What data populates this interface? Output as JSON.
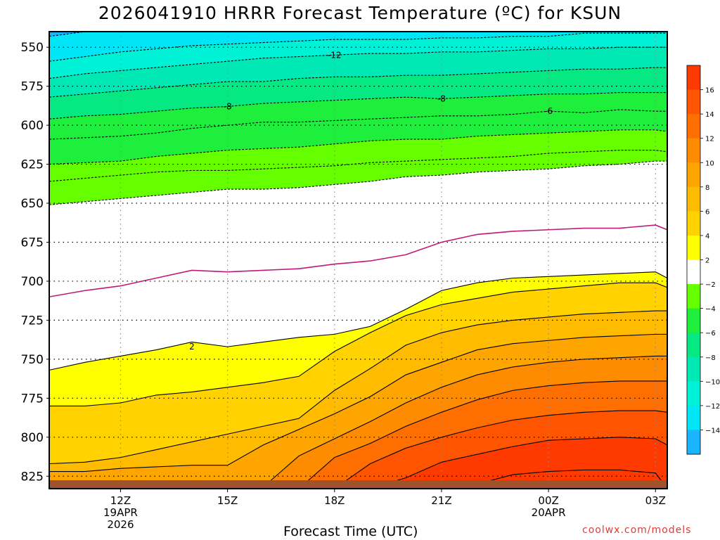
{
  "chart_data": {
    "type": "heatmap",
    "title": "2026041910 HRRR Forecast Temperature (ºC) for KSUN",
    "xlabel": "Forecast Time (UTC)",
    "ylabel": "",
    "y_axis": {
      "reversed": true,
      "ylim": [
        833,
        540
      ],
      "ticks": [
        550,
        575,
        600,
        625,
        650,
        675,
        700,
        725,
        750,
        775,
        800,
        825
      ]
    },
    "x_axis": {
      "hours": [
        10,
        11,
        12,
        13,
        14,
        15,
        16,
        17,
        18,
        19,
        20,
        21,
        22,
        23,
        24,
        25,
        26,
        27,
        27.33
      ],
      "ticks": [
        {
          "hour": 12,
          "labels": [
            "12Z",
            "19APR",
            "2026"
          ]
        },
        {
          "hour": 15,
          "labels": [
            "15Z"
          ]
        },
        {
          "hour": 18,
          "labels": [
            "18Z"
          ]
        },
        {
          "hour": 21,
          "labels": [
            "21Z"
          ]
        },
        {
          "hour": 24,
          "labels": [
            "00Z",
            "20APR"
          ]
        },
        {
          "hour": 27,
          "labels": [
            "03Z"
          ]
        }
      ]
    },
    "isotherms": [
      {
        "temp": -16,
        "style": "dashed",
        "levels": [
          543,
          540,
          540,
          540,
          540,
          540,
          540,
          540,
          540,
          540,
          540,
          540,
          540,
          540,
          540,
          540,
          540,
          540,
          540
        ]
      },
      {
        "temp": -14,
        "style": "dashed",
        "levels": [
          559,
          556,
          553,
          551,
          549,
          548,
          547,
          546,
          545,
          545,
          545,
          544,
          544,
          543,
          543,
          541,
          541,
          541,
          541
        ]
      },
      {
        "temp": -12,
        "style": "dashed",
        "levels": [
          570,
          567,
          565,
          563,
          561,
          559,
          557,
          556,
          555,
          554,
          554,
          553,
          553,
          552,
          551,
          551,
          550,
          550,
          550
        ]
      },
      {
        "temp": -10,
        "style": "dashed",
        "levels": [
          582,
          580,
          578,
          576,
          574,
          572,
          572,
          570,
          569,
          569,
          568,
          568,
          567,
          566,
          565,
          564,
          564,
          563,
          563
        ]
      },
      {
        "temp": -8,
        "style": "dashed",
        "levels": [
          596,
          594,
          593,
          591,
          589,
          588,
          586,
          585,
          584,
          583,
          582,
          583,
          582,
          581,
          580,
          580,
          579,
          579,
          579
        ]
      },
      {
        "temp": -6,
        "style": "dashed",
        "levels": [
          609,
          608,
          607,
          605,
          602,
          600,
          598,
          598,
          597,
          596,
          595,
          594,
          594,
          593,
          591,
          592,
          590,
          591,
          591
        ]
      },
      {
        "temp": -4,
        "style": "dashed",
        "levels": [
          625,
          624,
          623,
          620,
          618,
          616,
          615,
          614,
          612,
          610,
          609,
          609,
          607,
          606,
          605,
          604,
          603,
          603,
          604
        ]
      },
      {
        "temp": -2,
        "style": "dashed",
        "levels": [
          636,
          634,
          632,
          630,
          629,
          629,
          628,
          627,
          626,
          624,
          623,
          622,
          621,
          620,
          618,
          617,
          616,
          616,
          617
        ]
      },
      {
        "temp": 0,
        "style": "dashed",
        "levels": [
          651,
          649,
          647,
          645,
          643,
          641,
          641,
          640,
          638,
          636,
          633,
          632,
          630,
          629,
          628,
          626,
          625,
          623,
          623
        ]
      },
      {
        "temp": 1,
        "style": "magenta",
        "levels": [
          710,
          706,
          703,
          698,
          693,
          694,
          693,
          692,
          689,
          687,
          683,
          675,
          670,
          668,
          667,
          666,
          666,
          664,
          667
        ]
      },
      {
        "temp": 2,
        "style": "solid",
        "levels": [
          757,
          752,
          748,
          744,
          739,
          742,
          739,
          736,
          734,
          729,
          718,
          706,
          701,
          698,
          697,
          696,
          695,
          694,
          698
        ]
      },
      {
        "temp": 4,
        "style": "solid",
        "levels": [
          780,
          780,
          778,
          773,
          771,
          768,
          765,
          761,
          745,
          733,
          722,
          715,
          711,
          707,
          705,
          703,
          701,
          701,
          704
        ]
      },
      {
        "temp": 6,
        "style": "solid",
        "levels": [
          817,
          816,
          813,
          808,
          803,
          798,
          793,
          788,
          770,
          756,
          741,
          733,
          728,
          725,
          723,
          721,
          720,
          719,
          719
        ]
      },
      {
        "temp": 8,
        "style": "solid",
        "levels": [
          822,
          822,
          820,
          819,
          818,
          818,
          805,
          795,
          785,
          774,
          760,
          752,
          744,
          740,
          738,
          736,
          735,
          734,
          734
        ]
      },
      {
        "temp": 10,
        "style": "solid",
        "levels": [
          833,
          833,
          833,
          833,
          833,
          833,
          832,
          812,
          801,
          790,
          778,
          768,
          760,
          755,
          752,
          750,
          749,
          748,
          748
        ]
      },
      {
        "temp": 12,
        "style": "solid",
        "levels": [
          833,
          833,
          833,
          833,
          833,
          833,
          833,
          833,
          813,
          804,
          793,
          784,
          776,
          770,
          767,
          765,
          764,
          764,
          764
        ]
      },
      {
        "temp": 14,
        "style": "solid",
        "levels": [
          833,
          833,
          833,
          833,
          833,
          833,
          833,
          833,
          833,
          817,
          807,
          800,
          794,
          789,
          786,
          784,
          783,
          783,
          784
        ]
      },
      {
        "temp": 16,
        "style": "solid",
        "levels": [
          833,
          833,
          833,
          833,
          833,
          833,
          833,
          833,
          833,
          833,
          826,
          816,
          811,
          806,
          802,
          801,
          800,
          801,
          805
        ]
      },
      {
        "temp": 18,
        "style": "solid",
        "levels": [
          833,
          833,
          833,
          833,
          833,
          833,
          833,
          833,
          833,
          833,
          833,
          833,
          830,
          824,
          822,
          821,
          821,
          823,
          833
        ]
      }
    ],
    "contour_labels": [
      {
        "text": "-12",
        "hour": 18,
        "level": 555
      },
      {
        "text": "-8",
        "hour": 15,
        "level": 588
      },
      {
        "text": "-8",
        "hour": 21,
        "level": 583
      },
      {
        "text": "-6",
        "hour": 24,
        "level": 591
      },
      {
        "text": "2",
        "hour": 14,
        "level": 742
      }
    ],
    "colorbar": {
      "labels": [
        "16",
        "14",
        "12",
        "10",
        "8",
        "6",
        "4",
        "2",
        "−2",
        "−4",
        "−6",
        "−8",
        "−10",
        "−12",
        "−14"
      ],
      "colors": [
        "#ff3a00",
        "#ff5500",
        "#ff6e00",
        "#ff8c00",
        "#ffa500",
        "#ffbb00",
        "#ffd200",
        "#ffff00",
        "#ffffff",
        "#66ff00",
        "#1eef3d",
        "#05e882",
        "#00e8b4",
        "#00f2d6",
        "#00e6f7",
        "#1ab4ff"
      ]
    },
    "terrain_color": "#a0522d",
    "grid": true
  },
  "credit": "coolwx.com/models"
}
